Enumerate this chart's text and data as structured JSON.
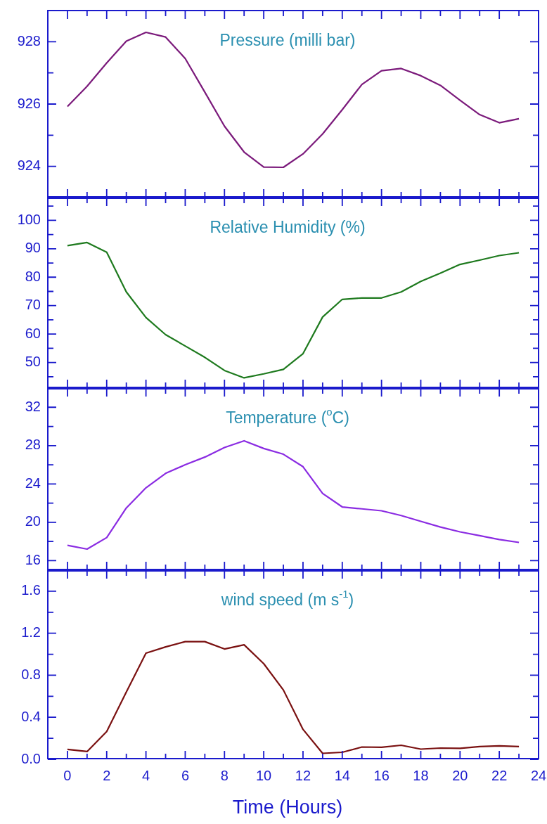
{
  "chart_data": [
    {
      "type": "line",
      "title": "Pressure (milli bar)",
      "x": [
        0,
        1,
        2,
        3,
        4,
        5,
        6,
        7,
        8,
        9,
        10,
        11,
        12,
        13,
        14,
        15,
        16,
        17,
        18,
        19,
        20,
        21,
        22,
        23
      ],
      "xlim": [
        -1,
        24
      ],
      "xticks": [
        0,
        {
          "value": 1,
          "label": null
        },
        2,
        {
          "value": 3,
          "label": null
        },
        4,
        {
          "value": 5,
          "label": null
        },
        6,
        {
          "value": 7,
          "label": null
        },
        8,
        {
          "value": 9,
          "label": null
        },
        10,
        {
          "value": 11,
          "label": null
        },
        12,
        {
          "value": 13,
          "label": null
        },
        14,
        {
          "value": 15,
          "label": null
        },
        16,
        {
          "value": 17,
          "label": null
        },
        18,
        {
          "value": 19,
          "label": null
        },
        20,
        {
          "value": 21,
          "label": null
        },
        22,
        {
          "value": 23,
          "label": null
        },
        24
      ],
      "ylim": [
        923,
        929
      ],
      "yticks": [
        924,
        {
          "value": 925,
          "label": null
        },
        926,
        {
          "value": 927,
          "label": null
        },
        928
      ],
      "tick_labels": "y",
      "series": [
        {
          "color": "#7b1a7b",
          "values": [
            925.92,
            926.57,
            927.32,
            928.02,
            928.3,
            928.15,
            927.46,
            926.38,
            925.29,
            924.46,
            923.98,
            923.97,
            924.4,
            925.04,
            925.82,
            926.63,
            927.07,
            927.14,
            926.91,
            926.6,
            926.12,
            925.66,
            925.4,
            925.53
          ]
        }
      ]
    },
    {
      "type": "line",
      "title": "Relative Humidity (%)",
      "x": [
        0,
        1,
        2,
        3,
        4,
        5,
        6,
        7,
        8,
        9,
        10,
        11,
        12,
        13,
        14,
        15,
        16,
        17,
        18,
        19,
        20,
        21,
        22,
        23
      ],
      "xlim": [
        -1,
        24
      ],
      "xticks": [
        0,
        {
          "value": 1,
          "label": null
        },
        2,
        {
          "value": 3,
          "label": null
        },
        4,
        {
          "value": 5,
          "label": null
        },
        6,
        {
          "value": 7,
          "label": null
        },
        8,
        {
          "value": 9,
          "label": null
        },
        10,
        {
          "value": 11,
          "label": null
        },
        12,
        {
          "value": 13,
          "label": null
        },
        14,
        {
          "value": 15,
          "label": null
        },
        16,
        {
          "value": 17,
          "label": null
        },
        18,
        {
          "value": 19,
          "label": null
        },
        20,
        {
          "value": 21,
          "label": null
        },
        22,
        {
          "value": 23,
          "label": null
        },
        24
      ],
      "ylim": [
        41,
        108
      ],
      "yticks": [
        {
          "value": 45,
          "label": null
        },
        50,
        {
          "value": 55,
          "label": null
        },
        60,
        {
          "value": 65,
          "label": null
        },
        70,
        {
          "value": 75,
          "label": null
        },
        80,
        {
          "value": 85,
          "label": null
        },
        90,
        {
          "value": 95,
          "label": null
        },
        100,
        {
          "value": 105,
          "label": null
        }
      ],
      "tick_labels": "y",
      "series": [
        {
          "color": "#1e7a1e",
          "values": [
            91.1,
            92.2,
            88.8,
            74.8,
            65.8,
            59.8,
            55.8,
            51.8,
            47.2,
            44.6,
            46,
            47.6,
            53.1,
            66,
            72.2,
            72.7,
            72.7,
            74.8,
            78.5,
            81.4,
            84.5,
            86,
            87.6,
            88.6
          ]
        }
      ]
    },
    {
      "type": "line",
      "title": "Temperature ($^{o}$C)",
      "x": [
        0,
        1,
        2,
        3,
        4,
        5,
        6,
        7,
        8,
        9,
        10,
        11,
        12,
        13,
        14,
        15,
        16,
        17,
        18,
        19,
        20,
        21,
        22,
        23
      ],
      "xlim": [
        -1,
        24
      ],
      "xticks": [
        0,
        {
          "value": 1,
          "label": null
        },
        2,
        {
          "value": 3,
          "label": null
        },
        4,
        {
          "value": 5,
          "label": null
        },
        6,
        {
          "value": 7,
          "label": null
        },
        8,
        {
          "value": 9,
          "label": null
        },
        10,
        {
          "value": 11,
          "label": null
        },
        12,
        {
          "value": 13,
          "label": null
        },
        14,
        {
          "value": 15,
          "label": null
        },
        16,
        {
          "value": 17,
          "label": null
        },
        18,
        {
          "value": 19,
          "label": null
        },
        20,
        {
          "value": 21,
          "label": null
        },
        22,
        {
          "value": 23,
          "label": null
        },
        24
      ],
      "ylim": [
        15,
        34
      ],
      "yticks": [
        16,
        {
          "value": 18,
          "label": null
        },
        20,
        {
          "value": 22,
          "label": null
        },
        24,
        {
          "value": 26,
          "label": null
        },
        28,
        {
          "value": 30,
          "label": null
        },
        32
      ],
      "tick_labels": "y",
      "series": [
        {
          "color": "#8a2be2",
          "values": [
            17.6,
            17.2,
            18.4,
            21.5,
            23.6,
            25.1,
            26.0,
            26.8,
            27.8,
            28.5,
            27.7,
            27.1,
            25.8,
            23.0,
            21.6,
            21.4,
            21.2,
            20.7,
            20.1,
            19.5,
            19.0,
            18.6,
            18.2,
            17.9
          ]
        }
      ]
    },
    {
      "type": "line",
      "title": "wind speed (m s$^{-1}$)",
      "xlabel": "Time (Hours)",
      "x": [
        0,
        1,
        2,
        3,
        4,
        5,
        6,
        7,
        8,
        9,
        10,
        11,
        12,
        13,
        14,
        15,
        16,
        17,
        18,
        19,
        20,
        21,
        22,
        23
      ],
      "xlim": [
        -1,
        24
      ],
      "xticks": [
        0,
        {
          "value": 1,
          "label": null
        },
        2,
        {
          "value": 3,
          "label": null
        },
        4,
        {
          "value": 5,
          "label": null
        },
        6,
        {
          "value": 7,
          "label": null
        },
        8,
        {
          "value": 9,
          "label": null
        },
        10,
        {
          "value": 11,
          "label": null
        },
        12,
        {
          "value": 13,
          "label": null
        },
        14,
        {
          "value": 15,
          "label": null
        },
        16,
        {
          "value": 17,
          "label": null
        },
        18,
        {
          "value": 19,
          "label": null
        },
        20,
        {
          "value": 21,
          "label": null
        },
        22,
        {
          "value": 23,
          "label": null
        },
        24
      ],
      "ylim": [
        0,
        1.8
      ],
      "yticks": [
        {
          "value": 0,
          "label": "0.0"
        },
        {
          "value": 0.2,
          "label": null
        },
        0.4,
        {
          "value": 0.6,
          "label": null
        },
        0.8,
        {
          "value": 1.0,
          "label": null
        },
        1.2,
        {
          "value": 1.4,
          "label": null
        },
        1.6
      ],
      "series": [
        {
          "color": "#7a1010",
          "values": [
            0.094,
            0.074,
            0.265,
            0.64,
            1.01,
            1.07,
            1.12,
            1.12,
            1.05,
            1.09,
            0.91,
            0.66,
            0.285,
            0.057,
            0.067,
            0.117,
            0.114,
            0.134,
            0.097,
            0.107,
            0.104,
            0.121,
            0.128,
            0.121
          ]
        }
      ]
    }
  ]
}
